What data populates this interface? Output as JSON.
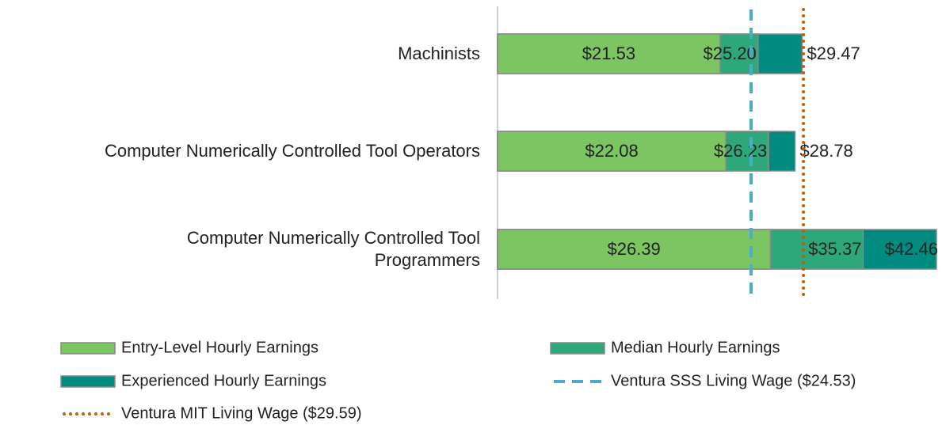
{
  "chart_data": {
    "type": "bar",
    "orientation": "horizontal",
    "categories": [
      "Machinists",
      "Computer Numerically Controlled Tool Operators",
      "Computer Numerically Controlled Tool\nProgrammers"
    ],
    "series": [
      {
        "name": "Entry-Level Hourly Earnings",
        "color": "#7dc462",
        "values": [
          21.53,
          22.08,
          26.39
        ],
        "value_labels": [
          "$21.53",
          "$22.08",
          "$26.39"
        ]
      },
      {
        "name": "Median Hourly Earnings",
        "color": "#2ea87a",
        "values": [
          25.2,
          26.23,
          35.37
        ],
        "value_labels": [
          "$25.20",
          "$26.23",
          "$35.37"
        ]
      },
      {
        "name": "Experienced Hourly Earnings",
        "color": "#008a80",
        "values": [
          29.47,
          28.78,
          42.46
        ],
        "value_labels": [
          "$29.47",
          "$28.78",
          "$42.46"
        ]
      }
    ],
    "reference_lines": [
      {
        "name": "Ventura SSS Living Wage ($24.53)",
        "value": 24.53,
        "color": "#4bacc6",
        "style": "dashed"
      },
      {
        "name": "Ventura MIT Living Wage ($29.59)",
        "value": 29.59,
        "color": "#c55a11",
        "style": "dotted"
      }
    ]
  }
}
